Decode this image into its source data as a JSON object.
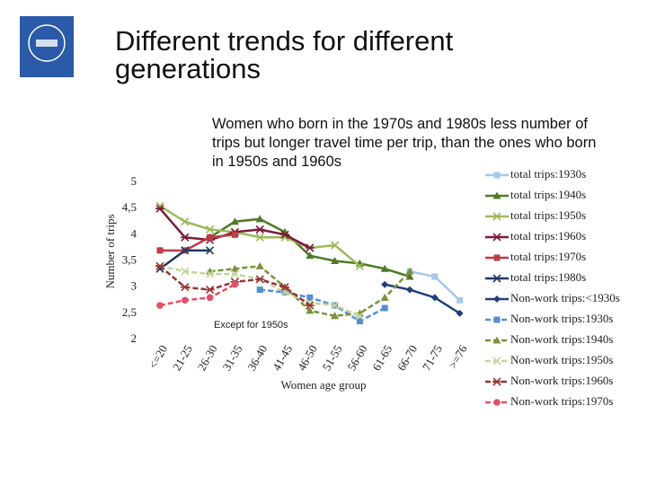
{
  "slide": {
    "title_lines": [
      "Different trends for different",
      "generations"
    ],
    "note": "Women who born in the 1970s and 1980s less number of trips but longer travel time per trip, than the ones who born in 1950s and 1960s"
  },
  "chart_data": {
    "type": "line",
    "xlabel": "Women age group",
    "ylabel": "Number of trips",
    "annotation": "Except for 1950s",
    "categories": [
      "<=20",
      "21-25",
      "26-30",
      "31-35",
      "36-40",
      "41-45",
      "46-50",
      "51-55",
      "56-60",
      "61-65",
      "66-70",
      "71-75",
      ">=76"
    ],
    "ylim": [
      2,
      5
    ],
    "yticks": [
      2,
      {
        "value": 2.5,
        "label": "2,5"
      },
      3,
      {
        "value": 3.5,
        "label": "3,5"
      },
      4,
      {
        "value": 4.5,
        "label": "4,5"
      },
      5
    ],
    "series": [
      {
        "name": "total trips:1930s",
        "color": "#a6c8ea",
        "marker": "square",
        "dashed": false,
        "values": [
          null,
          null,
          null,
          null,
          null,
          null,
          null,
          null,
          null,
          null,
          3.3,
          3.2,
          2.75
        ]
      },
      {
        "name": "total trips:1940s",
        "color": "#4f7a28",
        "marker": "triangle",
        "dashed": false,
        "values": [
          null,
          null,
          3.95,
          4.25,
          4.3,
          4.05,
          3.6,
          3.5,
          3.45,
          3.35,
          3.2,
          null,
          null
        ]
      },
      {
        "name": "total trips:1950s",
        "color": "#9bbb59",
        "marker": "x",
        "dashed": false,
        "values": [
          4.55,
          4.25,
          4.1,
          4.05,
          3.95,
          3.95,
          3.75,
          3.8,
          3.4,
          null,
          null,
          null,
          null
        ]
      },
      {
        "name": "total trips:1960s",
        "color": "#7b1c3a",
        "marker": "star",
        "dashed": false,
        "values": [
          4.5,
          3.95,
          3.9,
          4.05,
          4.1,
          4.0,
          3.75,
          null,
          null,
          null,
          null,
          null,
          null
        ]
      },
      {
        "name": "total trips:1970s",
        "color": "#be3b48",
        "marker": "square",
        "dashed": false,
        "values": [
          3.7,
          3.7,
          3.95,
          4.0,
          null,
          null,
          null,
          null,
          null,
          null,
          null,
          null,
          null
        ]
      },
      {
        "name": "total trips:1980s",
        "color": "#1f3864",
        "marker": "x",
        "dashed": false,
        "values": [
          3.35,
          3.7,
          3.7,
          null,
          null,
          null,
          null,
          null,
          null,
          null,
          null,
          null,
          null
        ]
      },
      {
        "name": "Non-work trips:<1930s",
        "color": "#1f3f7a",
        "marker": "diamond",
        "dashed": false,
        "values": [
          null,
          null,
          null,
          null,
          null,
          null,
          null,
          null,
          null,
          3.05,
          2.95,
          2.8,
          2.5
        ]
      },
      {
        "name": "Non-work trips:1930s",
        "color": "#558ed5",
        "marker": "square",
        "dashed": true,
        "values": [
          null,
          null,
          null,
          null,
          2.95,
          2.9,
          2.8,
          2.65,
          2.35,
          2.6,
          null,
          null,
          null
        ]
      },
      {
        "name": "Non-work trips:1940s",
        "color": "#77933c",
        "marker": "triangle",
        "dashed": true,
        "values": [
          null,
          null,
          3.3,
          3.35,
          3.4,
          3.0,
          2.55,
          2.45,
          2.5,
          2.8,
          3.3,
          null,
          null
        ]
      },
      {
        "name": "Non-work trips:1950s",
        "color": "#c3d69b",
        "marker": "x",
        "dashed": true,
        "values": [
          3.4,
          3.3,
          3.25,
          3.25,
          3.15,
          2.9,
          2.7,
          2.65,
          2.45,
          null,
          null,
          null,
          null
        ]
      },
      {
        "name": "Non-work trips:1960s",
        "color": "#953735",
        "marker": "star",
        "dashed": true,
        "values": [
          3.4,
          3.0,
          2.95,
          3.1,
          3.15,
          3.0,
          2.65,
          null,
          null,
          null,
          null,
          null,
          null
        ]
      },
      {
        "name": "Non-work trips:1970s",
        "color": "#e0526a",
        "marker": "circle",
        "dashed": true,
        "values": [
          2.65,
          2.75,
          2.8,
          3.05,
          null,
          null,
          null,
          null,
          null,
          null,
          null,
          null,
          null
        ]
      }
    ]
  }
}
